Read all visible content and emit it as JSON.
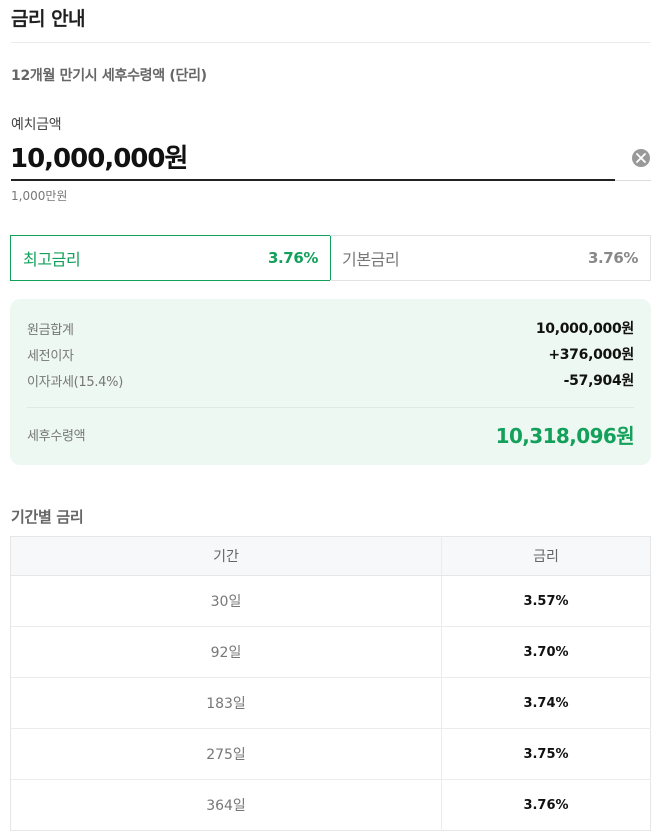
{
  "header": {
    "title": "금리 안내"
  },
  "section": {
    "subtitle": "12개월 만기시 세후수령액 (단리)"
  },
  "deposit": {
    "label": "예치금액",
    "value": "10,000,000원",
    "hint": "1,000만원",
    "clear_icon": "close-circle-icon"
  },
  "rate_tabs": [
    {
      "label": "최고금리",
      "value": "3.76%",
      "active": true
    },
    {
      "label": "기본금리",
      "value": "3.76%",
      "active": false
    }
  ],
  "summary": {
    "rows": [
      {
        "label": "원금합계",
        "value": "10,000,000원"
      },
      {
        "label": "세전이자",
        "value": "+376,000원"
      },
      {
        "label": "이자과세(15.4%)",
        "value": "-57,904원"
      }
    ],
    "net": {
      "label": "세후수령액",
      "value": "10,318,096원"
    }
  },
  "period_rates": {
    "title": "기간별 금리",
    "columns": [
      "기간",
      "금리"
    ],
    "rows": [
      {
        "period": "30일",
        "rate": "3.57%"
      },
      {
        "period": "92일",
        "rate": "3.70%"
      },
      {
        "period": "183일",
        "rate": "3.74%"
      },
      {
        "period": "275일",
        "rate": "3.75%"
      },
      {
        "period": "364일",
        "rate": "3.76%"
      }
    ]
  },
  "colors": {
    "accent": "#13a05a",
    "summary_bg": "#eef8f2",
    "table_header_bg": "#f7f8f9"
  }
}
